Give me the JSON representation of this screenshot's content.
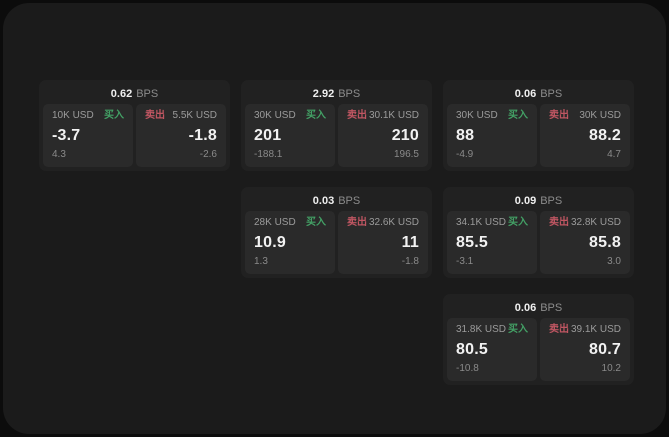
{
  "labels": {
    "bps_suffix": "BPS",
    "buy": "买入",
    "sell": "卖出"
  },
  "colors": {
    "buy_green": "#43a065",
    "sell_red": "#c05662",
    "page_background": "#0c0c0c",
    "panel_background": "#1b1b1b",
    "card_background": "#212121",
    "tile_background": "#2a2a2a",
    "primary_text": "#f2f2f2",
    "muted_text": "#8c8c8c"
  },
  "cards": [
    {
      "bps": "0.62",
      "buy": {
        "amount": "10K USD",
        "price": "-3.7",
        "delta": "4.3"
      },
      "sell": {
        "amount": "5.5K USD",
        "price": "-1.8",
        "delta": "-2.6"
      }
    },
    {
      "bps": "2.92",
      "buy": {
        "amount": "30K USD",
        "price": "201",
        "delta": "-188.1"
      },
      "sell": {
        "amount": "30.1K USD",
        "price": "210",
        "delta": "196.5"
      }
    },
    {
      "bps": "0.06",
      "buy": {
        "amount": "30K USD",
        "price": "88",
        "delta": "-4.9"
      },
      "sell": {
        "amount": "30K USD",
        "price": "88.2",
        "delta": "4.7"
      }
    },
    {
      "bps": "0.03",
      "buy": {
        "amount": "28K USD",
        "price": "10.9",
        "delta": "1.3"
      },
      "sell": {
        "amount": "32.6K USD",
        "price": "11",
        "delta": "-1.8"
      }
    },
    {
      "bps": "0.09",
      "buy": {
        "amount": "34.1K USD",
        "price": "85.5",
        "delta": "-3.1"
      },
      "sell": {
        "amount": "32.8K USD",
        "price": "85.8",
        "delta": "3.0"
      }
    },
    {
      "bps": "0.06",
      "buy": {
        "amount": "31.8K USD",
        "price": "80.5",
        "delta": "-10.8"
      },
      "sell": {
        "amount": "39.1K USD",
        "price": "80.7",
        "delta": "10.2"
      }
    }
  ]
}
